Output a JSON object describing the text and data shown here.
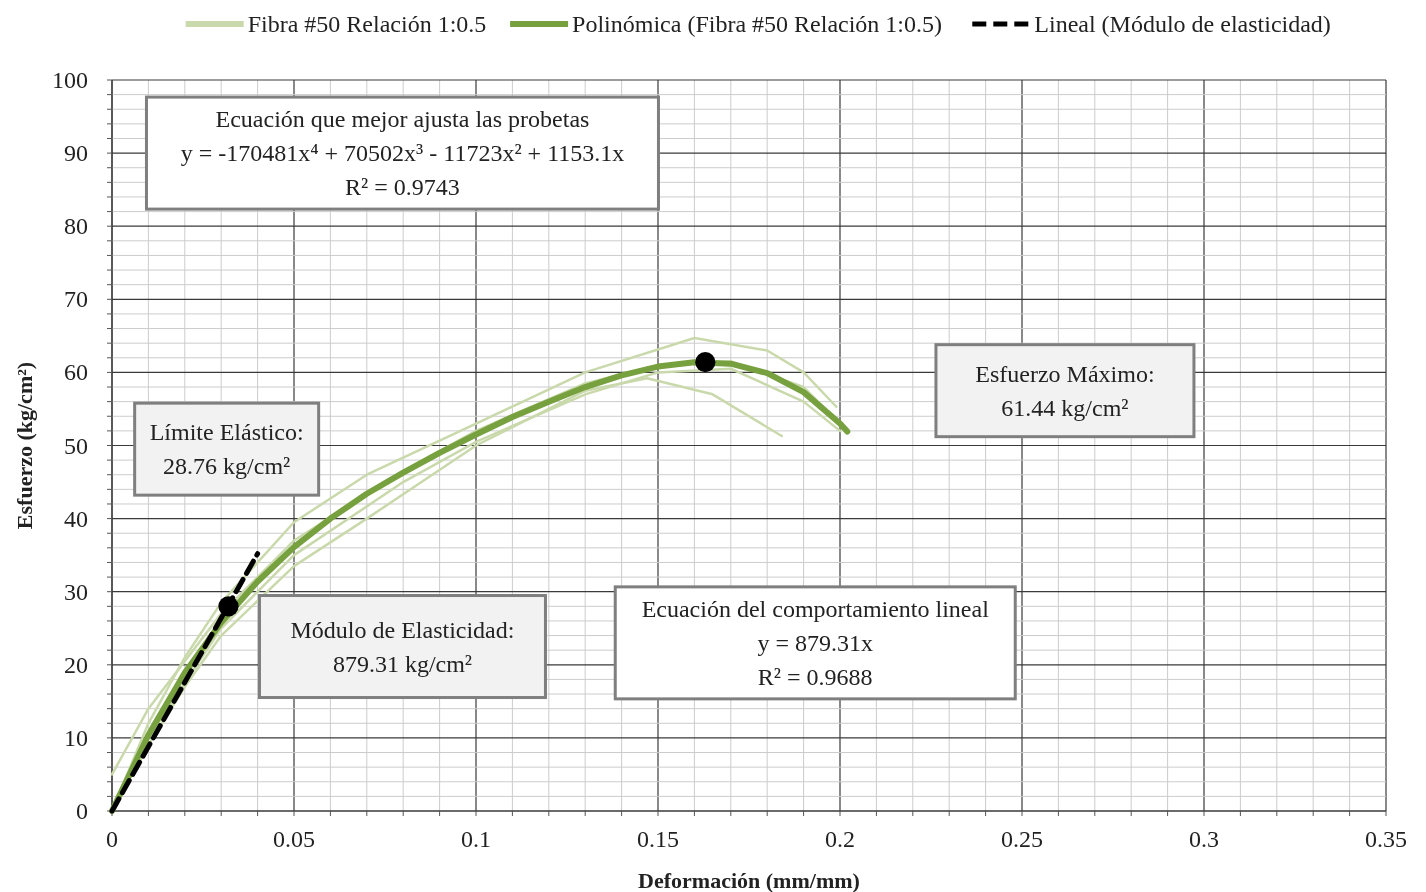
{
  "chart_data": {
    "type": "line",
    "xlabel": "Deformación (mm/mm)",
    "ylabel": "Esfuerzo (kg/cm²)",
    "xlim": [
      0,
      0.35
    ],
    "ylim": [
      0,
      100
    ],
    "xticks": [
      0,
      {
        "value": 0.01,
        "label": null
      },
      {
        "value": 0.02,
        "label": null
      },
      {
        "value": 0.03,
        "label": null
      },
      {
        "value": 0.04,
        "label": null
      },
      0.05,
      {
        "value": 0.06,
        "label": null
      },
      {
        "value": 0.07,
        "label": null
      },
      {
        "value": 0.08,
        "label": null
      },
      {
        "value": 0.09,
        "label": null
      },
      0.1,
      {
        "value": 0.11,
        "label": null
      },
      {
        "value": 0.12,
        "label": null
      },
      {
        "value": 0.13,
        "label": null
      },
      {
        "value": 0.14,
        "label": null
      },
      0.15,
      {
        "value": 0.16,
        "label": null
      },
      {
        "value": 0.17,
        "label": null
      },
      {
        "value": 0.18,
        "label": null
      },
      {
        "value": 0.19,
        "label": null
      },
      0.2,
      {
        "value": 0.21,
        "label": null
      },
      {
        "value": 0.22,
        "label": null
      },
      {
        "value": 0.23,
        "label": null
      },
      {
        "value": 0.24,
        "label": null
      },
      0.25,
      {
        "value": 0.26,
        "label": null
      },
      {
        "value": 0.27,
        "label": null
      },
      {
        "value": 0.28,
        "label": null
      },
      {
        "value": 0.29,
        "label": null
      },
      0.3,
      {
        "value": 0.31,
        "label": null
      },
      {
        "value": 0.32,
        "label": null
      },
      {
        "value": 0.33,
        "label": null
      },
      {
        "value": 0.34,
        "label": null
      },
      0.35
    ],
    "yticks": [
      0,
      {
        "value": 2,
        "label": null
      },
      {
        "value": 4,
        "label": null
      },
      {
        "value": 6,
        "label": null
      },
      {
        "value": 8,
        "label": null
      },
      10,
      {
        "value": 12,
        "label": null
      },
      {
        "value": 14,
        "label": null
      },
      {
        "value": 16,
        "label": null
      },
      {
        "value": 18,
        "label": null
      },
      20,
      {
        "value": 22,
        "label": null
      },
      {
        "value": 24,
        "label": null
      },
      {
        "value": 26,
        "label": null
      },
      {
        "value": 28,
        "label": null
      },
      30,
      {
        "value": 32,
        "label": null
      },
      {
        "value": 34,
        "label": null
      },
      {
        "value": 36,
        "label": null
      },
      {
        "value": 38,
        "label": null
      },
      40,
      {
        "value": 42,
        "label": null
      },
      {
        "value": 44,
        "label": null
      },
      {
        "value": 46,
        "label": null
      },
      {
        "value": 48,
        "label": null
      },
      50,
      {
        "value": 52,
        "label": null
      },
      {
        "value": 54,
        "label": null
      },
      {
        "value": 56,
        "label": null
      },
      {
        "value": 58,
        "label": null
      },
      60,
      {
        "value": 62,
        "label": null
      },
      {
        "value": 64,
        "label": null
      },
      {
        "value": 66,
        "label": null
      },
      {
        "value": 68,
        "label": null
      },
      70,
      {
        "value": 72,
        "label": null
      },
      {
        "value": 74,
        "label": null
      },
      {
        "value": 76,
        "label": null
      },
      {
        "value": 78,
        "label": null
      },
      80,
      {
        "value": 82,
        "label": null
      },
      {
        "value": 84,
        "label": null
      },
      {
        "value": 86,
        "label": null
      },
      {
        "value": 88,
        "label": null
      },
      90,
      {
        "value": 92,
        "label": null
      },
      {
        "value": 94,
        "label": null
      },
      {
        "value": 96,
        "label": null
      },
      {
        "value": 98,
        "label": null
      },
      100
    ],
    "grid": true,
    "legend": "top",
    "marker": "none",
    "series": [
      {
        "name": "Fibra #50 Relación 1:0.5",
        "color": "#c9d9ab",
        "x": [
          0,
          0.01,
          0.02,
          0.03,
          0.05,
          0.07,
          0.1,
          0.13,
          0.16,
          0.18,
          0.19,
          0.199
        ],
        "values": [
          0,
          12,
          21,
          28.5,
          39.5,
          46,
          53,
          60,
          64.7,
          63,
          60,
          55.3
        ]
      },
      {
        "color": "#c9d9ab",
        "x": [
          0,
          0.01,
          0.02,
          0.03,
          0.05,
          0.07,
          0.1,
          0.13,
          0.147,
          0.165,
          0.184
        ],
        "values": [
          0,
          9,
          17,
          24,
          33.5,
          40,
          50,
          57.5,
          59.2,
          57,
          51.3
        ]
      },
      {
        "color": "#c9d9ab",
        "x": [
          0,
          0.01,
          0.03,
          0.05,
          0.08,
          0.1,
          0.13,
          0.15,
          0.17,
          0.19,
          0.2
        ],
        "values": [
          0,
          10,
          25,
          35,
          45,
          50.5,
          57,
          60,
          60.5,
          56,
          52
        ]
      },
      {
        "color": "#c9d9ab",
        "x": [
          0,
          0.01,
          0.03,
          0.05,
          0.08,
          0.1,
          0.13,
          0.15,
          0.17,
          0.19,
          0.2
        ],
        "values": [
          5,
          14,
          27,
          37,
          46.5,
          52,
          58.5,
          61,
          61.5,
          58,
          53
        ]
      },
      {
        "name": "Polinómica (Fibra #50 Relación 1:0.5)",
        "color": "#77a03f",
        "x": [
          0,
          0.01,
          0.02,
          0.03,
          0.04,
          0.05,
          0.06,
          0.07,
          0.08,
          0.09,
          0.1,
          0.11,
          0.12,
          0.13,
          0.14,
          0.15,
          0.16,
          0.17,
          0.18,
          0.19,
          0.2,
          0.202
        ],
        "values": [
          0,
          10.4,
          18.9,
          25.8,
          31.4,
          36.1,
          40,
          43.4,
          46.3,
          49,
          51.5,
          53.9,
          56,
          58,
          59.6,
          60.8,
          61.4,
          61.2,
          59.9,
          57.3,
          53,
          51.9
        ]
      },
      {
        "name": "Lineal (Módulo de elasticidad)",
        "color": "#000000",
        "line_style": "dashed",
        "x": [
          0,
          0.04
        ],
        "values": [
          0,
          35.2
        ]
      },
      {
        "type": "scatter",
        "color": "#000000",
        "marker": "circle",
        "x": [
          0.032,
          0.163
        ],
        "values": [
          28,
          61.4
        ]
      }
    ],
    "annotations": [
      "Ecuación que mejor ajusta las probetas\ny = -170481x⁴ + 70502x³ - 11723x² + 1153.1x\nR² = 0.9743",
      "Límite Elástico:\n28.76 kg/cm²",
      "Módulo de Elasticidad:\n879.31 kg/cm²",
      "Ecuación del comportamiento lineal\ny = 879.31x\nR² = 0.9688",
      "Esfuerzo Máximo:\n61.44 kg/cm²"
    ]
  }
}
